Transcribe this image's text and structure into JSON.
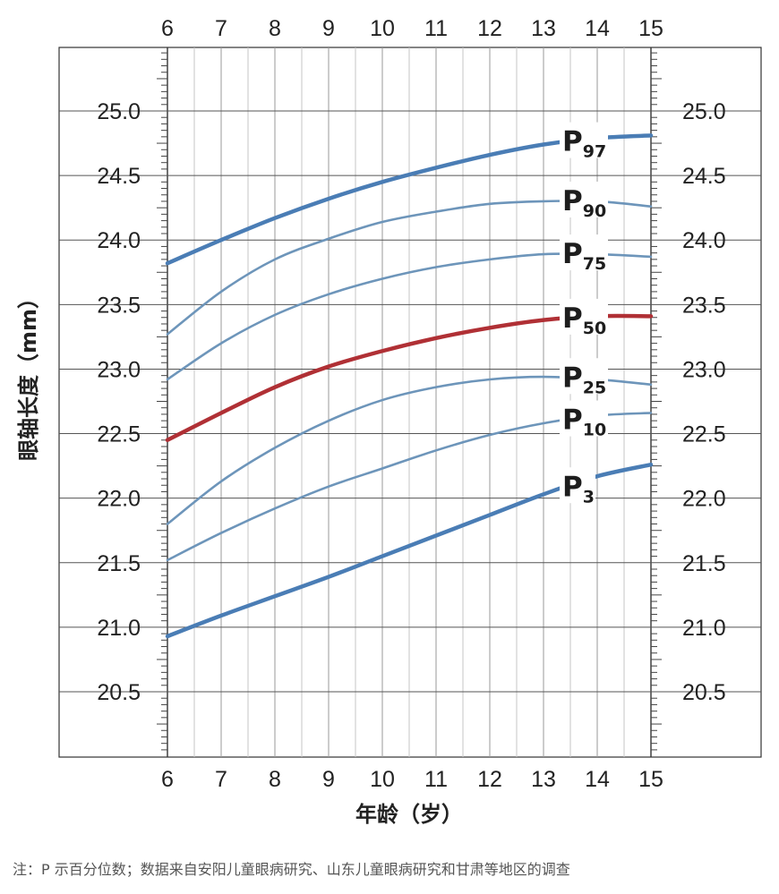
{
  "chart_data": {
    "type": "line",
    "xlabel": "年龄（岁）",
    "ylabel": "眼轴长度（mm）",
    "xlim": [
      6,
      15
    ],
    "ylim": [
      20.0,
      25.5
    ],
    "x_ticks": [
      "6",
      "7",
      "8",
      "9",
      "10",
      "11",
      "12",
      "13",
      "14",
      "15"
    ],
    "y_ticks": [
      "20.5",
      "21.0",
      "21.5",
      "22.0",
      "22.5",
      "23.0",
      "23.5",
      "24.0",
      "24.5",
      "25.0"
    ],
    "grid": true,
    "mirror_axes": true,
    "x": [
      6,
      7,
      8,
      9,
      10,
      11,
      12,
      13,
      14,
      15
    ],
    "series": [
      {
        "name": "P",
        "sub": "97",
        "color": "#4a7db5",
        "style": "thick",
        "label_at": 13.4,
        "values": [
          23.82,
          24.0,
          24.17,
          24.32,
          24.45,
          24.56,
          24.66,
          24.74,
          24.79,
          24.81
        ]
      },
      {
        "name": "P",
        "sub": "90",
        "color": "#6d95ba",
        "style": "thin",
        "label_at": 13.4,
        "values": [
          23.27,
          23.6,
          23.85,
          24.01,
          24.14,
          24.22,
          24.28,
          24.3,
          24.3,
          24.26
        ]
      },
      {
        "name": "P",
        "sub": "75",
        "color": "#6d95ba",
        "style": "thin",
        "label_at": 13.4,
        "values": [
          22.92,
          23.2,
          23.42,
          23.58,
          23.7,
          23.79,
          23.85,
          23.89,
          23.89,
          23.87
        ]
      },
      {
        "name": "P",
        "sub": "50",
        "color": "#b03035",
        "style": "thick",
        "label_at": 13.4,
        "values": [
          22.45,
          22.66,
          22.86,
          23.02,
          23.14,
          23.24,
          23.32,
          23.38,
          23.41,
          23.41
        ]
      },
      {
        "name": "P",
        "sub": "25",
        "color": "#6d95ba",
        "style": "thin",
        "label_at": 13.4,
        "values": [
          21.8,
          22.13,
          22.39,
          22.6,
          22.76,
          22.86,
          22.92,
          22.94,
          22.92,
          22.88
        ]
      },
      {
        "name": "P",
        "sub": "10",
        "color": "#6d95ba",
        "style": "thin",
        "label_at": 13.4,
        "values": [
          21.52,
          21.73,
          21.92,
          22.09,
          22.23,
          22.37,
          22.49,
          22.58,
          22.64,
          22.66
        ]
      },
      {
        "name": "P",
        "sub": "3",
        "color": "#4a7db5",
        "style": "thick",
        "label_at": 13.4,
        "values": [
          20.93,
          21.09,
          21.24,
          21.39,
          21.55,
          21.71,
          21.87,
          22.03,
          22.17,
          22.26
        ]
      }
    ]
  },
  "footnote": "注：P 示百分位数；数据来自安阳儿童眼病研究、山东儿童眼病研究和甘肃等地区的调查"
}
